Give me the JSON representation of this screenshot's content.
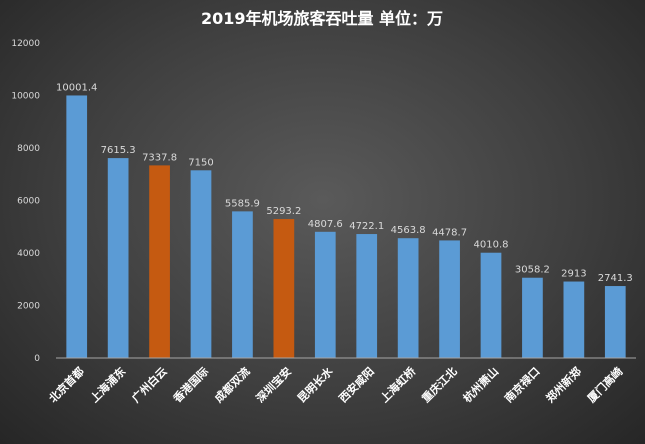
{
  "chart_data": {
    "type": "bar",
    "title": "2019年机场旅客吞吐量 单位：万",
    "categories": [
      "北京首都",
      "上海浦东",
      "广州白云",
      "香港国际",
      "成都双流",
      "深圳宝安",
      "昆明长水",
      "西安咸阳",
      "上海虹桥",
      "重庆江北",
      "杭州萧山",
      "南京禄口",
      "郑州新郑",
      "厦门高崎"
    ],
    "values": [
      10001.4,
      7615.3,
      7337.8,
      7150,
      5585.9,
      5293.2,
      4807.6,
      4722.1,
      4563.8,
      4478.7,
      4010.8,
      3058.2,
      2913,
      2741.3
    ],
    "data_labels": [
      "10001.4",
      "7615.3",
      "7337.8",
      "7150",
      "5585.9",
      "5293.2",
      "4807.6",
      "4722.1",
      "4563.8",
      "4478.7",
      "4010.8",
      "3058.2",
      "2913",
      "2741.3"
    ],
    "yticks": [
      0,
      2000,
      4000,
      6000,
      8000,
      10000,
      12000
    ],
    "ytick_labels": [
      "0",
      "2000",
      "4000",
      "6000",
      "8000",
      "10000",
      "12000"
    ],
    "ylim": [
      0,
      12000
    ],
    "highlighted_categories": [
      "广州白云",
      "深圳宝安"
    ],
    "colors": {
      "bar": "#5b9bd5",
      "highlight": "#c55a11"
    },
    "grid": false,
    "legend": "none"
  }
}
